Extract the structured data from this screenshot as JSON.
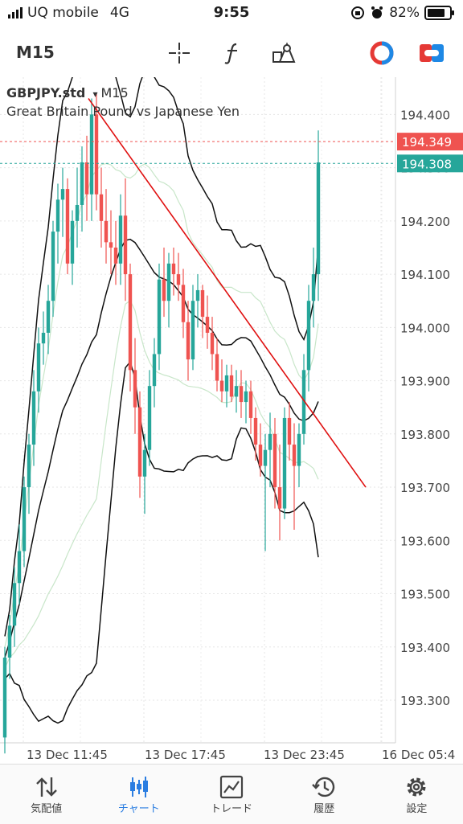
{
  "status": {
    "carrier": "UQ mobile",
    "network": "4G",
    "time": "9:55",
    "battery": "82%"
  },
  "toolbar": {
    "timeframe": "M15"
  },
  "chart": {
    "symbol": "GBPJPY.std",
    "dropdown": "▾",
    "period": "M15",
    "description": "Great Britain Pound vs Japanese Yen",
    "ask_label": "194.349",
    "bid_label": "194.308",
    "colors": {
      "up": "#26a69a",
      "down": "#ef5350",
      "ask": "#ef5350",
      "bid": "#26a69a",
      "trend": "#e01010",
      "band": "#111111",
      "inner": "#c8e6c9"
    }
  },
  "chart_data": {
    "type": "candlestick",
    "ylim": [
      193.22,
      194.47
    ],
    "y_ticks": [
      "194.400",
      "194.300",
      "194.200",
      "194.100",
      "194.000",
      "193.900",
      "193.800",
      "193.700",
      "193.600",
      "193.500",
      "193.400",
      "193.300"
    ],
    "x_ticks": [
      "13 Dec 11:45",
      "13 Dec 17:45",
      "13 Dec 23:45",
      "16 Dec 05:4"
    ],
    "ask": 194.349,
    "bid": 194.308,
    "trendline": {
      "from": 194.43,
      "to": 193.7
    },
    "ohlc": [
      [
        193.23,
        193.4,
        193.2,
        193.38
      ],
      [
        193.38,
        193.46,
        193.34,
        193.44
      ],
      [
        193.44,
        193.55,
        193.4,
        193.52
      ],
      [
        193.52,
        193.63,
        193.48,
        193.58
      ],
      [
        193.58,
        193.72,
        193.55,
        193.7
      ],
      [
        193.7,
        193.8,
        193.65,
        193.78
      ],
      [
        193.78,
        193.92,
        193.74,
        193.88
      ],
      [
        193.88,
        194.0,
        193.84,
        193.97
      ],
      [
        193.97,
        194.03,
        193.93,
        193.99
      ],
      [
        193.99,
        194.08,
        193.95,
        194.05
      ],
      [
        194.05,
        194.2,
        194.02,
        194.18
      ],
      [
        194.18,
        194.27,
        194.12,
        194.24
      ],
      [
        194.24,
        194.3,
        194.17,
        194.26
      ],
      [
        194.26,
        194.28,
        194.1,
        194.12
      ],
      [
        194.12,
        194.22,
        194.08,
        194.2
      ],
      [
        194.2,
        194.3,
        194.15,
        194.23
      ],
      [
        194.23,
        194.34,
        194.18,
        194.31
      ],
      [
        194.31,
        194.36,
        194.2,
        194.25
      ],
      [
        194.25,
        194.43,
        194.2,
        194.4
      ],
      [
        194.4,
        194.44,
        194.22,
        194.25
      ],
      [
        194.25,
        194.3,
        194.15,
        194.2
      ],
      [
        194.2,
        194.26,
        194.12,
        194.16
      ],
      [
        194.16,
        194.22,
        194.1,
        194.15
      ],
      [
        194.15,
        194.2,
        194.08,
        194.12
      ],
      [
        194.12,
        194.25,
        194.08,
        194.21
      ],
      [
        194.21,
        194.28,
        194.05,
        194.1
      ],
      [
        194.1,
        194.12,
        193.88,
        193.92
      ],
      [
        193.92,
        193.98,
        193.8,
        193.85
      ],
      [
        193.85,
        193.88,
        193.68,
        193.72
      ],
      [
        193.72,
        193.8,
        193.65,
        193.77
      ],
      [
        193.77,
        193.92,
        193.74,
        193.89
      ],
      [
        193.89,
        193.98,
        193.85,
        193.95
      ],
      [
        193.95,
        194.12,
        193.92,
        194.09
      ],
      [
        194.09,
        194.15,
        194.02,
        194.05
      ],
      [
        194.05,
        194.14,
        194.0,
        194.12
      ],
      [
        194.12,
        194.15,
        194.06,
        194.1
      ],
      [
        194.1,
        194.14,
        194.05,
        194.08
      ],
      [
        194.08,
        194.11,
        193.98,
        194.01
      ],
      [
        194.01,
        194.05,
        193.9,
        193.94
      ],
      [
        193.94,
        194.08,
        193.92,
        194.05
      ],
      [
        194.05,
        194.1,
        194.0,
        194.07
      ],
      [
        194.07,
        194.08,
        193.98,
        194.02
      ],
      [
        194.02,
        194.06,
        193.96,
        193.99
      ],
      [
        193.99,
        194.02,
        193.92,
        193.95
      ],
      [
        193.95,
        193.98,
        193.88,
        193.9
      ],
      [
        193.9,
        193.94,
        193.86,
        193.88
      ],
      [
        193.88,
        193.93,
        193.85,
        193.91
      ],
      [
        193.91,
        193.93,
        193.86,
        193.87
      ],
      [
        193.87,
        193.92,
        193.84,
        193.89
      ],
      [
        193.89,
        193.92,
        193.83,
        193.86
      ],
      [
        193.86,
        193.9,
        193.82,
        193.88
      ],
      [
        193.88,
        193.9,
        193.8,
        193.83
      ],
      [
        193.83,
        193.85,
        193.75,
        193.78
      ],
      [
        193.78,
        193.82,
        193.72,
        193.74
      ],
      [
        193.74,
        193.8,
        193.58,
        193.77
      ],
      [
        193.77,
        193.84,
        193.7,
        193.8
      ],
      [
        193.8,
        193.83,
        193.66,
        193.7
      ],
      [
        193.7,
        193.78,
        193.6,
        193.66
      ],
      [
        193.66,
        193.85,
        193.64,
        193.83
      ],
      [
        193.83,
        193.86,
        193.75,
        193.78
      ],
      [
        193.78,
        193.82,
        193.62,
        193.74
      ],
      [
        193.74,
        193.82,
        193.7,
        193.8
      ],
      [
        193.8,
        193.95,
        193.78,
        193.92
      ],
      [
        193.92,
        194.08,
        193.88,
        194.05
      ],
      [
        194.05,
        194.15,
        194.0,
        194.1
      ],
      [
        194.1,
        194.37,
        194.05,
        194.31
      ]
    ]
  },
  "tabs": [
    {
      "label": "気配値",
      "icon": "quotes-icon"
    },
    {
      "label": "チャート",
      "icon": "chart-icon"
    },
    {
      "label": "トレード",
      "icon": "trade-icon"
    },
    {
      "label": "履歴",
      "icon": "history-icon"
    },
    {
      "label": "設定",
      "icon": "settings-icon"
    }
  ]
}
